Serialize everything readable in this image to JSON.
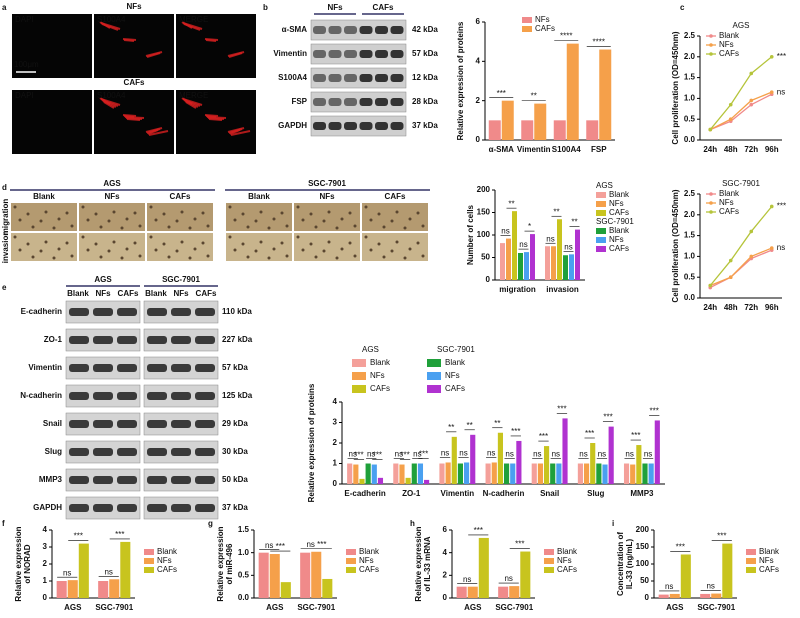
{
  "figure": {
    "panel_letters": [
      "a",
      "b",
      "c",
      "d",
      "e",
      "f",
      "g",
      "h",
      "i"
    ],
    "a": {
      "rows": [
        {
          "label": "NFs",
          "channels": [
            "DAPI",
            "S100A4",
            "MERGE"
          ]
        },
        {
          "label": "CAFs",
          "channels": [
            "DAPI",
            "S100A4",
            "MERGE"
          ]
        }
      ],
      "scale_bar": "100μm"
    },
    "b_blot": {
      "groups": [
        "NFs",
        "CAFs"
      ],
      "proteins": [
        "α-SMA",
        "Vimentin",
        "S100A4",
        "FSP",
        "GAPDH"
      ],
      "sizes": [
        "42 kDa",
        "57 kDa",
        "12 kDa",
        "28 kDa",
        "37 kDa"
      ]
    },
    "d_images": {
      "groups": [
        {
          "label": "AGS",
          "conditions": [
            "Blank",
            "NFs",
            "CAFs"
          ]
        },
        {
          "label": "SGC-7901",
          "conditions": [
            "Blank",
            "NFs",
            "CAFs"
          ]
        }
      ],
      "rows": [
        "migration",
        "invasion"
      ]
    },
    "e_blot": {
      "groups": [
        {
          "label": "AGS",
          "conditions": [
            "Blank",
            "NFs",
            "CAFs"
          ]
        },
        {
          "label": "SGC-7901",
          "conditions": [
            "Blank",
            "NFs",
            "CAFs"
          ]
        }
      ],
      "proteins": [
        "E-cadherin",
        "ZO-1",
        "Vimentin",
        "N-cadherin",
        "Snail",
        "Slug",
        "MMP3",
        "GAPDH"
      ],
      "sizes": [
        "110 kDa",
        "227 kDa",
        "57 kDa",
        "125 kDa",
        "29 kDa",
        "30 kDa",
        "50 kDa",
        "37 kDa"
      ]
    }
  },
  "chart_data": [
    {
      "type": "bar",
      "y_label": "Relative expression of proteins",
      "categories": [
        "α-SMA",
        "Vimentin",
        "S100A4",
        "FSP"
      ],
      "series": [
        {
          "name": "NFs",
          "color": "#f08a8a",
          "values": [
            1,
            1,
            1,
            1
          ]
        },
        {
          "name": "CAFs",
          "color": "#f5a04a",
          "values": [
            2.0,
            1.85,
            4.9,
            4.6
          ]
        }
      ],
      "ylim": [
        0,
        6
      ],
      "yticks": [
        0,
        2,
        4,
        6
      ],
      "annotations": [
        "***",
        "**",
        "****",
        "****"
      ]
    },
    {
      "type": "line",
      "title": "AGS",
      "y_label": "Cell proliferation (OD=450nm)",
      "categories": [
        "24h",
        "48h",
        "72h",
        "96h"
      ],
      "series": [
        {
          "name": "Blank",
          "color": "#f08a8a",
          "values": [
            0.25,
            0.45,
            0.85,
            1.1
          ]
        },
        {
          "name": "NFs",
          "color": "#f5a04a",
          "values": [
            0.25,
            0.5,
            0.95,
            1.15
          ]
        },
        {
          "name": "CAFs",
          "color": "#b5c43a",
          "values": [
            0.25,
            0.85,
            1.6,
            2.0
          ]
        }
      ],
      "ylim": [
        0,
        2.5
      ],
      "yticks": [
        {
          "value": 0,
          "label": "0.0"
        },
        0.5,
        {
          "value": 1,
          "label": "1.0"
        },
        1.5,
        {
          "value": 2,
          "label": "2.0"
        },
        2.5
      ],
      "annotations": [
        "***",
        "ns"
      ]
    },
    {
      "type": "line",
      "title": "SGC-7901",
      "y_label": "Cell proliferation (OD=450nm)",
      "categories": [
        "24h",
        "48h",
        "72h",
        "96h"
      ],
      "series": [
        {
          "name": "Blank",
          "color": "#f08a8a",
          "values": [
            0.25,
            0.5,
            0.95,
            1.15
          ]
        },
        {
          "name": "NFs",
          "color": "#f5a04a",
          "values": [
            0.3,
            0.5,
            1.0,
            1.2
          ]
        },
        {
          "name": "CAFs",
          "color": "#b5c43a",
          "values": [
            0.3,
            0.9,
            1.6,
            2.2
          ]
        }
      ],
      "ylim": [
        0,
        2.5
      ],
      "yticks": [
        {
          "value": 0,
          "label": "0.0"
        },
        0.5,
        {
          "value": 1,
          "label": "1.0"
        },
        1.5,
        {
          "value": 2,
          "label": "2.0"
        },
        2.5
      ],
      "annotations": [
        "***",
        "ns"
      ]
    },
    {
      "type": "bar",
      "y_label": "Number of cells",
      "categories": [
        "migration",
        "invasion"
      ],
      "legend_groups": [
        "AGS",
        "SGC-7901"
      ],
      "series": [
        {
          "name": "Blank",
          "color": "#f4a09a",
          "values": [
            82,
            75
          ]
        },
        {
          "name": "NFs",
          "color": "#f5a04a",
          "values": [
            92,
            75
          ]
        },
        {
          "name": "CAFs",
          "color": "#c8c41e",
          "values": [
            153,
            135
          ]
        },
        {
          "name": "Blank",
          "color": "#1fa03a",
          "values": [
            60,
            55
          ]
        },
        {
          "name": "NFs",
          "color": "#4aa0f0",
          "values": [
            62,
            57
          ]
        },
        {
          "name": "CAFs",
          "color": "#b032d0",
          "values": [
            102,
            112
          ]
        }
      ],
      "ylim": [
        0,
        200
      ],
      "yticks": [
        0,
        50,
        100,
        150,
        200
      ],
      "annotations": [
        "ns",
        "**",
        "ns",
        "*",
        "ns",
        "**",
        "ns",
        "**"
      ]
    },
    {
      "type": "bar",
      "y_label": "Relative expression of proteins",
      "categories": [
        "E-cadherin",
        "ZO-1",
        "Vimentin",
        "N-cadherin",
        "Snail",
        "Slug",
        "MMP3"
      ],
      "legend_groups": [
        "AGS",
        "SGC-7901"
      ],
      "series": [
        {
          "name": "Blank",
          "color": "#f4a09a",
          "values": [
            1,
            1,
            1,
            1,
            1,
            1,
            1
          ]
        },
        {
          "name": "NFs",
          "color": "#f5a04a",
          "values": [
            0.95,
            0.95,
            1.05,
            1.05,
            1.0,
            1.0,
            0.95
          ]
        },
        {
          "name": "CAFs",
          "color": "#c8c41e",
          "values": [
            0.25,
            0.3,
            2.3,
            2.5,
            1.85,
            2.0,
            1.9
          ]
        },
        {
          "name": "Blank",
          "color": "#1fa03a",
          "values": [
            1,
            1,
            1,
            1,
            1,
            1,
            1
          ]
        },
        {
          "name": "NFs",
          "color": "#4aa0f0",
          "values": [
            0.95,
            1.0,
            1.05,
            1.0,
            1.0,
            0.95,
            1.0
          ]
        },
        {
          "name": "CAFs",
          "color": "#b032d0",
          "values": [
            0.3,
            0.2,
            2.4,
            2.1,
            3.2,
            2.8,
            3.1
          ]
        }
      ],
      "ylim": [
        0,
        4
      ],
      "yticks": [
        0,
        1,
        2,
        3,
        4
      ],
      "annotations": [
        "ns",
        "***",
        "ns",
        "***",
        "ns",
        "***",
        "ns",
        "***",
        "ns",
        "**",
        "ns",
        "**",
        "ns",
        "**",
        "ns",
        "***",
        "ns",
        "***",
        "ns",
        "***",
        "ns",
        "***",
        "ns",
        "***",
        "ns",
        "***",
        "ns",
        "***"
      ]
    },
    {
      "type": "bar",
      "y_label": [
        "Relative expression",
        "of NORAD"
      ],
      "categories": [
        "AGS",
        "SGC-7901"
      ],
      "series": [
        {
          "name": "Blank",
          "color": "#f08a8a",
          "values": [
            1,
            1
          ]
        },
        {
          "name": "NFs",
          "color": "#f5a04a",
          "values": [
            1.05,
            1.1
          ]
        },
        {
          "name": "CAFs",
          "color": "#c8c41e",
          "values": [
            3.2,
            3.3
          ]
        }
      ],
      "ylim": [
        0,
        4
      ],
      "yticks": [
        0,
        1,
        2,
        3,
        4
      ],
      "annotations": [
        "ns",
        "***",
        "ns",
        "***"
      ]
    },
    {
      "type": "bar",
      "y_label": [
        "Relative expression",
        "of miR-496"
      ],
      "categories": [
        "AGS",
        "SGC-7901"
      ],
      "series": [
        {
          "name": "Blank",
          "color": "#f08a8a",
          "values": [
            1.0,
            1.0
          ]
        },
        {
          "name": "NFs",
          "color": "#f5a04a",
          "values": [
            0.97,
            1.02
          ]
        },
        {
          "name": "CAFs",
          "color": "#c8c41e",
          "values": [
            0.35,
            0.42
          ]
        }
      ],
      "ylim": [
        0,
        1.5
      ],
      "yticks": [
        {
          "value": 0,
          "label": "0.0"
        },
        0.5,
        {
          "value": 1,
          "label": "1.0"
        },
        1.5
      ],
      "annotations": [
        "ns",
        "***",
        "ns",
        "***"
      ]
    },
    {
      "type": "bar",
      "y_label": [
        "Relative expression",
        "of IL-33 mRNA"
      ],
      "categories": [
        "AGS",
        "SGC-7901"
      ],
      "series": [
        {
          "name": "Blank",
          "color": "#f08a8a",
          "values": [
            1,
            1
          ]
        },
        {
          "name": "NFs",
          "color": "#f5a04a",
          "values": [
            1,
            1.05
          ]
        },
        {
          "name": "CAFs",
          "color": "#c8c41e",
          "values": [
            5.3,
            4.1
          ]
        }
      ],
      "ylim": [
        0,
        6
      ],
      "yticks": [
        0,
        2,
        4,
        6
      ],
      "annotations": [
        "ns",
        "***",
        "ns",
        "***"
      ]
    },
    {
      "type": "bar",
      "y_label": [
        "Concentration of",
        "IL-33 (ng/mL)"
      ],
      "categories": [
        "AGS",
        "SGC-7901"
      ],
      "series": [
        {
          "name": "Blank",
          "color": "#f08a8a",
          "values": [
            10,
            12
          ]
        },
        {
          "name": "NFs",
          "color": "#f5a04a",
          "values": [
            12,
            13
          ]
        },
        {
          "name": "CAFs",
          "color": "#c8c41e",
          "values": [
            128,
            160
          ]
        }
      ],
      "ylim": [
        0,
        200
      ],
      "yticks": [
        0,
        50,
        100,
        150,
        200
      ],
      "annotations": [
        "ns",
        "***",
        "ns",
        "***"
      ]
    }
  ]
}
